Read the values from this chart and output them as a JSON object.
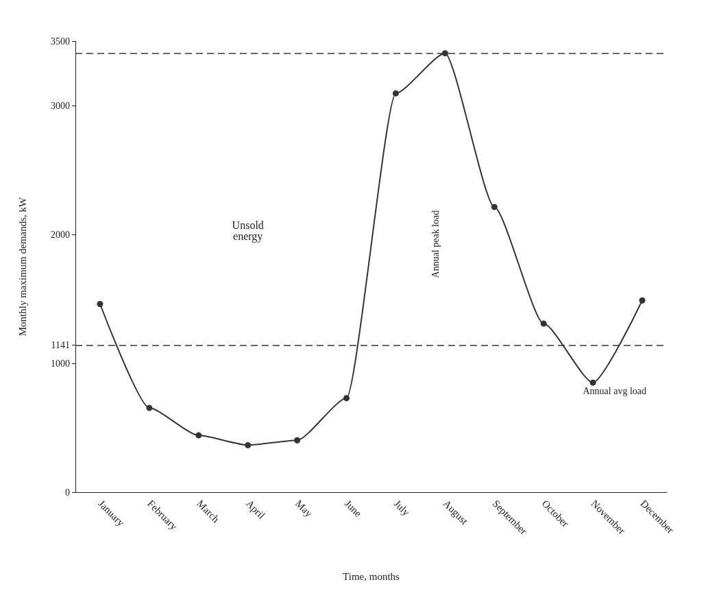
{
  "chart_data": {
    "type": "line",
    "xlabel": "Time, months",
    "ylabel": "Monthly maximum demands, kW",
    "categories": [
      "January",
      "February",
      "March",
      "April",
      "May",
      "June",
      "July",
      "August",
      "September",
      "October",
      "November",
      "December"
    ],
    "series": [
      {
        "color": "#333333",
        "values": [
          1460,
          654,
          441,
          365,
          403,
          730,
          3095,
          3406,
          2213,
          1308,
          850,
          1488
        ]
      }
    ],
    "ylim": [
      0,
      3500
    ],
    "yticks": [
      0,
      1000,
      1141,
      2000,
      3000,
      3500
    ],
    "ref_lines": [
      {
        "axis": "y",
        "value": 1141,
        "label": "Annual avg load",
        "line_style": "dashed"
      },
      {
        "axis": "y",
        "value": 3406,
        "line_style": "dashed"
      }
    ],
    "annotations": [
      "Annual peak load",
      "Unsold energy"
    ],
    "marker": "circle",
    "grid": false
  }
}
